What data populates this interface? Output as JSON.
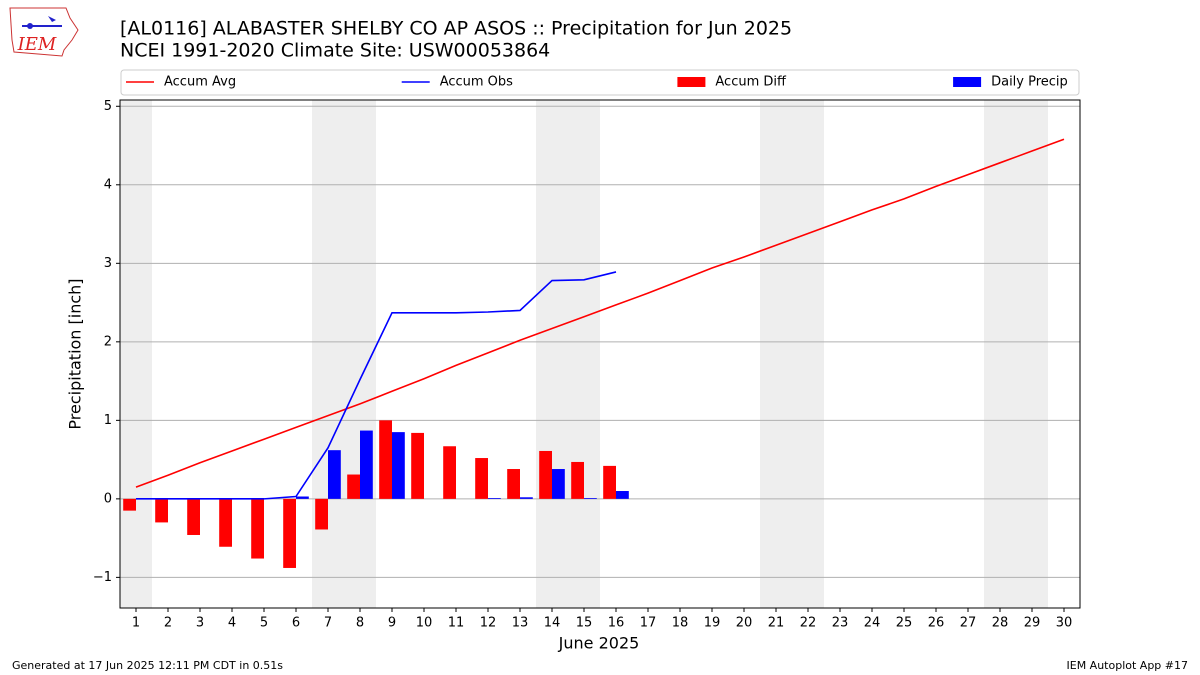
{
  "chart_data": {
    "type": "combo",
    "title": "[AL0116] ALABASTER SHELBY CO AP ASOS :: Precipitation for Jun 2025",
    "subtitle": "NCEI 1991-2020 Climate Site: USW00053864",
    "x_label": "June 2025",
    "y_label": "Precipitation [inch]",
    "x": [
      1,
      2,
      3,
      4,
      5,
      6,
      7,
      8,
      9,
      10,
      11,
      12,
      13,
      14,
      15,
      16,
      17,
      18,
      19,
      20,
      21,
      22,
      23,
      24,
      25,
      26,
      27,
      28,
      29,
      30
    ],
    "series": [
      {
        "name": "Accum Avg",
        "kind": "line",
        "color": "#ff0000",
        "values": [
          0.15,
          0.3,
          0.46,
          0.61,
          0.76,
          0.91,
          1.06,
          1.21,
          1.37,
          1.53,
          1.7,
          1.86,
          2.02,
          2.17,
          2.32,
          2.47,
          2.62,
          2.78,
          2.94,
          3.08,
          3.23,
          3.38,
          3.53,
          3.68,
          3.82,
          3.98,
          4.13,
          4.28,
          4.43,
          4.58
        ]
      },
      {
        "name": "Accum Obs",
        "kind": "line",
        "color": "#0000ff",
        "values": [
          0,
          0,
          0,
          0,
          0,
          0.03,
          0.65,
          1.52,
          2.37,
          2.37,
          2.37,
          2.38,
          2.4,
          2.78,
          2.79,
          2.89,
          null,
          null,
          null,
          null,
          null,
          null,
          null,
          null,
          null,
          null,
          null,
          null,
          null,
          null
        ]
      },
      {
        "name": "Accum Diff",
        "kind": "bar",
        "color": "#ff0000",
        "values": [
          -0.15,
          -0.3,
          -0.46,
          -0.61,
          -0.76,
          -0.88,
          -0.39,
          0.31,
          1.0,
          0.84,
          0.67,
          0.52,
          0.38,
          0.61,
          0.47,
          0.42,
          null,
          null,
          null,
          null,
          null,
          null,
          null,
          null,
          null,
          null,
          null,
          null,
          null,
          null
        ]
      },
      {
        "name": "Daily Precip",
        "kind": "bar",
        "color": "#0000ff",
        "values": [
          0,
          0,
          0,
          0,
          0,
          0.03,
          0.62,
          0.87,
          0.85,
          0,
          0,
          0.01,
          0.02,
          0.38,
          0.01,
          0.1,
          null,
          null,
          null,
          null,
          null,
          null,
          null,
          null,
          null,
          null,
          null,
          null,
          null,
          null
        ]
      }
    ],
    "shaded_days": [
      1,
      7,
      8,
      14,
      15,
      21,
      22,
      28,
      29
    ],
    "xlim": [
      0.5,
      30.5
    ],
    "xticks": [
      1,
      2,
      3,
      4,
      5,
      6,
      7,
      8,
      9,
      10,
      11,
      12,
      13,
      14,
      15,
      16,
      17,
      18,
      19,
      20,
      21,
      22,
      23,
      24,
      25,
      26,
      27,
      28,
      29,
      30
    ],
    "ylim": [
      -1.39,
      5.08
    ],
    "yticks": [
      {
        "value": -1,
        "label": "−1"
      },
      0,
      1,
      2,
      3,
      4,
      5
    ],
    "grid": true,
    "footer_left": "Generated at 17 Jun 2025 12:11 PM CDT in 0.51s",
    "footer_right": "IEM Autoplot App #17",
    "logo_text": "IEM"
  }
}
